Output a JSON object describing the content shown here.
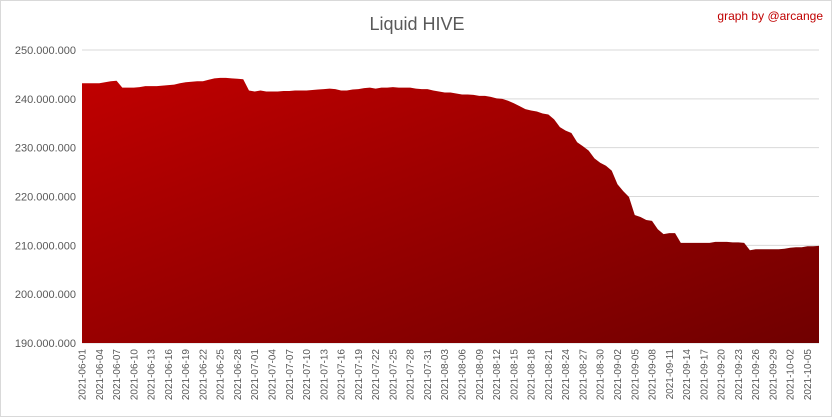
{
  "chart_data": {
    "type": "area",
    "title": "Liquid HIVE",
    "credit": "graph by @arcange",
    "xlabel": "",
    "ylabel": "",
    "ylim": [
      190000000,
      250000000
    ],
    "yticks": [
      190000000,
      200000000,
      210000000,
      220000000,
      230000000,
      240000000,
      250000000
    ],
    "ytick_labels": [
      "190.000.000",
      "200.000.000",
      "210.000.000",
      "220.000.000",
      "230.000.000",
      "240.000.000",
      "250.000.000"
    ],
    "xlim": [
      "2021-06-01",
      "2021-10-07"
    ],
    "xtick_labels": [
      "2021-06-01",
      "2021-06-04",
      "2021-06-07",
      "2021-06-10",
      "2021-06-13",
      "2021-06-16",
      "2021-06-19",
      "2021-06-22",
      "2021-06-25",
      "2021-06-28",
      "2021-07-01",
      "2021-07-04",
      "2021-07-07",
      "2021-07-10",
      "2021-07-13",
      "2021-07-16",
      "2021-07-19",
      "2021-07-22",
      "2021-07-25",
      "2021-07-28",
      "2021-07-31",
      "2021-08-03",
      "2021-08-06",
      "2021-08-09",
      "2021-08-12",
      "2021-08-15",
      "2021-08-18",
      "2021-08-21",
      "2021-08-24",
      "2021-08-27",
      "2021-08-30",
      "2021-09-02",
      "2021-09-05",
      "2021-09-08",
      "2021-09-11",
      "2021-09-14",
      "2021-09-17",
      "2021-09-20",
      "2021-09-23",
      "2021-09-26",
      "2021-09-29",
      "2021-10-02",
      "2021-10-05"
    ],
    "grid": true,
    "fill_color_top": "#c00000",
    "fill_color_bottom": "#700000",
    "series": [
      {
        "x": [
          "2021-06-01",
          "2021-06-02",
          "2021-06-03",
          "2021-06-04",
          "2021-06-05",
          "2021-06-06",
          "2021-06-07",
          "2021-06-08",
          "2021-06-09",
          "2021-06-10",
          "2021-06-11",
          "2021-06-12",
          "2021-06-13",
          "2021-06-14",
          "2021-06-15",
          "2021-06-16",
          "2021-06-17",
          "2021-06-18",
          "2021-06-19",
          "2021-06-20",
          "2021-06-21",
          "2021-06-22",
          "2021-06-23",
          "2021-06-24",
          "2021-06-25",
          "2021-06-26",
          "2021-06-27",
          "2021-06-28",
          "2021-06-29",
          "2021-06-30",
          "2021-07-01",
          "2021-07-02",
          "2021-07-03",
          "2021-07-04",
          "2021-07-05",
          "2021-07-06",
          "2021-07-07",
          "2021-07-08",
          "2021-07-09",
          "2021-07-10",
          "2021-07-11",
          "2021-07-12",
          "2021-07-13",
          "2021-07-14",
          "2021-07-15",
          "2021-07-16",
          "2021-07-17",
          "2021-07-18",
          "2021-07-19",
          "2021-07-20",
          "2021-07-21",
          "2021-07-22",
          "2021-07-23",
          "2021-07-24",
          "2021-07-25",
          "2021-07-26",
          "2021-07-27",
          "2021-07-28",
          "2021-07-29",
          "2021-07-30",
          "2021-07-31",
          "2021-08-01",
          "2021-08-02",
          "2021-08-03",
          "2021-08-04",
          "2021-08-05",
          "2021-08-06",
          "2021-08-07",
          "2021-08-08",
          "2021-08-09",
          "2021-08-10",
          "2021-08-11",
          "2021-08-12",
          "2021-08-13",
          "2021-08-14",
          "2021-08-15",
          "2021-08-16",
          "2021-08-17",
          "2021-08-18",
          "2021-08-19",
          "2021-08-20",
          "2021-08-21",
          "2021-08-22",
          "2021-08-23",
          "2021-08-24",
          "2021-08-25",
          "2021-08-26",
          "2021-08-27",
          "2021-08-28",
          "2021-08-29",
          "2021-08-30",
          "2021-08-31",
          "2021-09-01",
          "2021-09-02",
          "2021-09-03",
          "2021-09-04",
          "2021-09-05",
          "2021-09-06",
          "2021-09-07",
          "2021-09-08",
          "2021-09-09",
          "2021-09-10",
          "2021-09-11",
          "2021-09-12",
          "2021-09-13",
          "2021-09-14",
          "2021-09-15",
          "2021-09-16",
          "2021-09-17",
          "2021-09-18",
          "2021-09-19",
          "2021-09-20",
          "2021-09-21",
          "2021-09-22",
          "2021-09-23",
          "2021-09-24",
          "2021-09-25",
          "2021-09-26",
          "2021-09-27",
          "2021-09-28",
          "2021-09-29",
          "2021-09-30",
          "2021-10-01",
          "2021-10-02",
          "2021-10-03",
          "2021-10-04",
          "2021-10-05",
          "2021-10-06",
          "2021-10-07"
        ],
        "values": [
          243200000,
          243200000,
          243200000,
          243200000,
          243400000,
          243600000,
          243700000,
          242300000,
          242300000,
          242300000,
          242400000,
          242600000,
          242600000,
          242600000,
          242700000,
          242800000,
          242900000,
          243200000,
          243400000,
          243500000,
          243600000,
          243600000,
          243900000,
          244200000,
          244300000,
          244300000,
          244200000,
          244100000,
          244000000,
          241700000,
          241500000,
          241700000,
          241500000,
          241500000,
          241500000,
          241600000,
          241600000,
          241700000,
          241700000,
          241700000,
          241800000,
          241900000,
          242000000,
          242100000,
          242000000,
          241700000,
          241700000,
          241900000,
          242000000,
          242200000,
          242300000,
          242100000,
          242300000,
          242300000,
          242400000,
          242300000,
          242300000,
          242300000,
          242100000,
          242000000,
          242000000,
          241700000,
          241500000,
          241300000,
          241300000,
          241100000,
          240900000,
          240900000,
          240800000,
          240600000,
          240600000,
          240400000,
          240100000,
          240000000,
          239600000,
          239100000,
          238500000,
          237900000,
          237600000,
          237400000,
          237000000,
          236800000,
          235800000,
          234200000,
          233500000,
          233000000,
          231100000,
          230300000,
          229400000,
          227800000,
          226900000,
          226300000,
          225300000,
          222500000,
          221100000,
          219900000,
          216200000,
          215800000,
          215200000,
          215000000,
          213300000,
          212300000,
          212500000,
          212500000,
          210500000,
          210500000,
          210500000,
          210500000,
          210500000,
          210500000,
          210700000,
          210700000,
          210700000,
          210600000,
          210600000,
          210500000,
          209000000,
          209200000,
          209200000,
          209200000,
          209200000,
          209200000,
          209300000,
          209500000,
          209600000,
          209600000,
          209800000,
          209800000,
          209900000
        ]
      }
    ]
  }
}
